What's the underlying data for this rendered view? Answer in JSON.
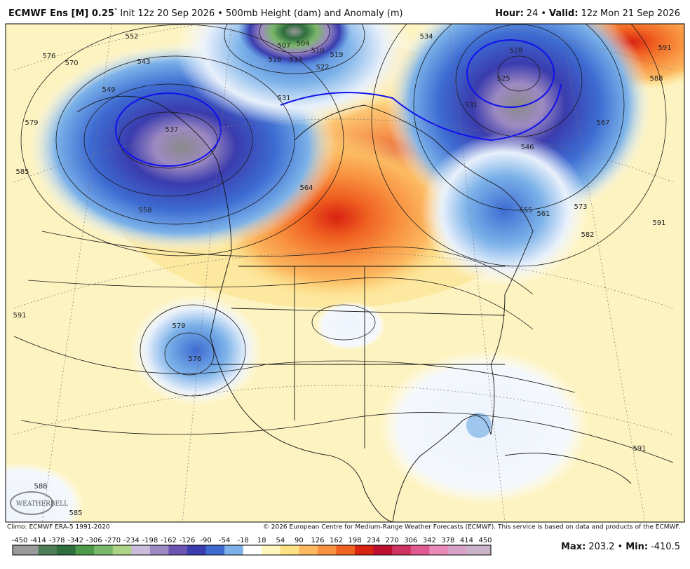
{
  "header": {
    "model": "ECMWF Ens [M] 0.25",
    "degree": "°",
    "init": "Init 12z 20 Sep 2026",
    "bullet": "•",
    "product": "500mb Height (dam) and Anomaly (m)",
    "hour_label": "Hour:",
    "hour": "24",
    "valid_label": "Valid:",
    "valid": "12z Mon 21 Sep 2026"
  },
  "map": {
    "contour_labels": [
      "576",
      "570",
      "552",
      "543",
      "549",
      "579",
      "585",
      "558",
      "537",
      "531",
      "516",
      "513",
      "507",
      "504",
      "510",
      "519",
      "522",
      "534",
      "528",
      "525",
      "531",
      "591",
      "588",
      "567",
      "546",
      "555",
      "561",
      "573",
      "582",
      "591",
      "564",
      "579",
      "576",
      "591",
      "588",
      "585",
      "591"
    ],
    "logo": "WEATHERBELL"
  },
  "footer": {
    "climo": "Climo: ECMWF ERA-5 1991-2020",
    "copyright": "© 2026 European Centre for Medium-Range Weather Forecasts (ECMWF). This service is based on data and products of the ECMWF.",
    "colorbar": {
      "ticks": [
        -450,
        -414,
        -378,
        -342,
        -306,
        -270,
        -234,
        -198,
        -162,
        -126,
        -90,
        -54,
        -18,
        18,
        54,
        90,
        126,
        162,
        198,
        234,
        270,
        306,
        342,
        378,
        414,
        450
      ],
      "colors": [
        "#9a9a9a",
        "#4f7d55",
        "#2f6e3e",
        "#4c9a4a",
        "#7ab86a",
        "#acd386",
        "#cbbcdc",
        "#9d8ac2",
        "#6c54b2",
        "#3b3cae",
        "#3d6bd2",
        "#7cb2e9",
        "#ffffff",
        "#fff6bc",
        "#fde183",
        "#fcb960",
        "#f89140",
        "#f06221",
        "#d82212",
        "#bd1030",
        "#d03262",
        "#e05a92",
        "#e98ab9",
        "#d9a2c9",
        "#c9b3c9"
      ]
    },
    "max_label": "Max:",
    "max": "203.2",
    "min_label": "Min:",
    "min": "-410.5"
  }
}
